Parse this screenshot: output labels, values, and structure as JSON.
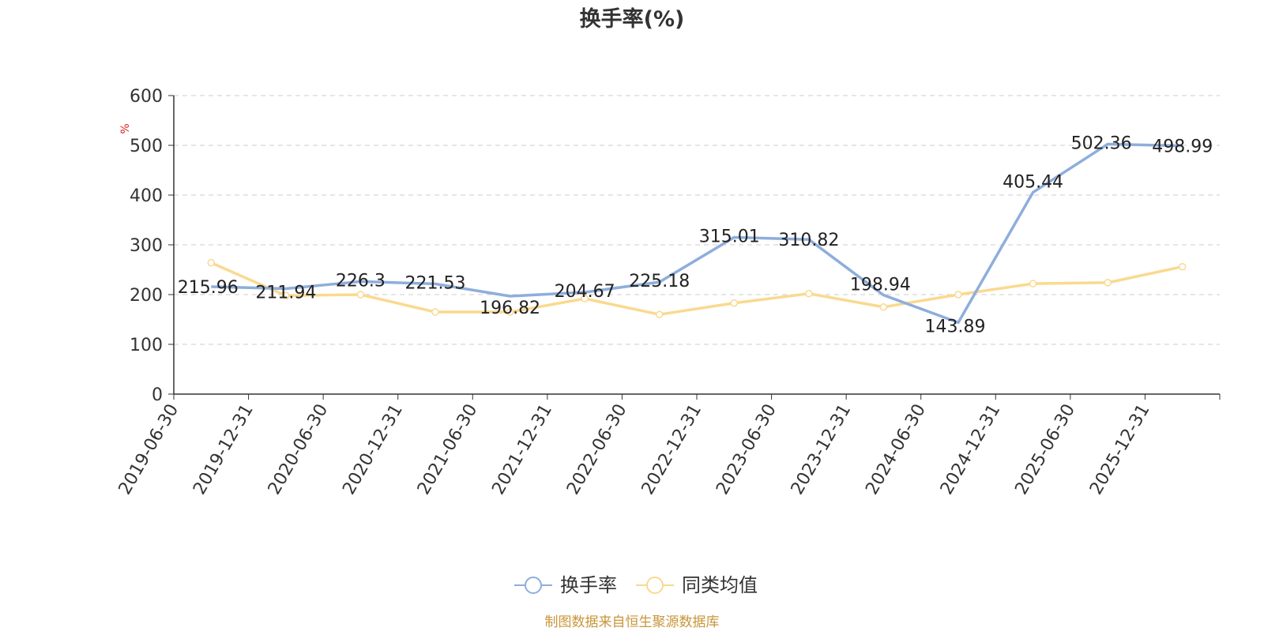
{
  "chart_data": {
    "type": "line",
    "title": "换手率(%)",
    "ylabel": "%",
    "xlabel": "",
    "categories": [
      "2019-06-30",
      "2019-12-31",
      "2020-06-30",
      "2020-12-31",
      "2021-06-30",
      "2021-12-31",
      "2022-06-30",
      "2022-12-31",
      "2023-06-30",
      "2023-12-31",
      "2024-06-30",
      "2024-12-31",
      "2025-06-30",
      "2025-12-31"
    ],
    "ylim": [
      0,
      600
    ],
    "yticks": [
      0,
      100,
      200,
      300,
      400,
      500,
      600
    ],
    "grid": true,
    "legend_position": "bottom-center",
    "series": [
      {
        "name": "换手率",
        "color": "#8eaedb",
        "values": [
          215.96,
          211.94,
          226.3,
          221.53,
          196.82,
          204.67,
          225.18,
          315.01,
          310.82,
          198.94,
          143.89,
          405.44,
          502.36,
          498.99
        ],
        "labels": [
          "215.96",
          "211.94",
          "226.3",
          "221.53",
          "196.82",
          "204.67",
          "225.18",
          "315.01",
          "310.82",
          "198.94",
          "143.89",
          "405.44",
          "502.36",
          "498.99"
        ]
      },
      {
        "name": "同类均值",
        "color": "#fad98f",
        "values": [
          264,
          198,
          200,
          165,
          165,
          192,
          160,
          183,
          202,
          175,
          200,
          222,
          224,
          256
        ]
      }
    ]
  },
  "footer": {
    "source_text": "制图数据来自恒生聚源数据库",
    "color": "#c9953a"
  }
}
